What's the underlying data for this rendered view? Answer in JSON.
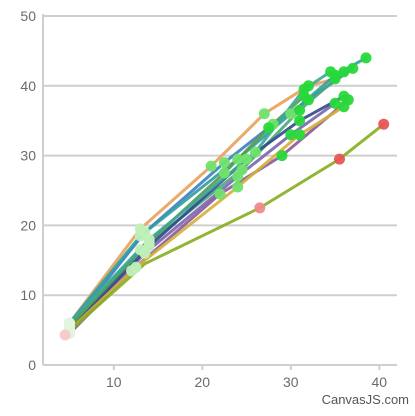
{
  "chart_data": {
    "type": "line",
    "title": "",
    "xlabel": "",
    "ylabel": "",
    "xlim": [
      2,
      42
    ],
    "ylim": [
      0,
      50
    ],
    "x_ticks": [
      "10",
      "20",
      "30",
      "40"
    ],
    "y_ticks": [
      "0",
      "10",
      "20",
      "30",
      "40",
      "50"
    ],
    "grid": true,
    "legend": "none",
    "series": [
      {
        "color": "#e8a15a",
        "points": [
          [
            5,
            6
          ],
          [
            13,
            19.5
          ],
          [
            21,
            28.5
          ],
          [
            27,
            36
          ],
          [
            32,
            40
          ],
          [
            35,
            41
          ]
        ]
      },
      {
        "color": "#3a7fbf",
        "points": [
          [
            5,
            5.5
          ],
          [
            13.5,
            19
          ],
          [
            22.5,
            29
          ],
          [
            28,
            34.5
          ],
          [
            32,
            38
          ],
          [
            37,
            42.5
          ]
        ]
      },
      {
        "color": "#2f9e9e",
        "points": [
          [
            5,
            6
          ],
          [
            13,
            18.5
          ],
          [
            24,
            29.5
          ],
          [
            30,
            36
          ],
          [
            35,
            41.5
          ],
          [
            38.5,
            44
          ]
        ]
      },
      {
        "color": "#4aa67a",
        "points": [
          [
            5,
            5.5
          ],
          [
            14,
            17.5
          ],
          [
            24.5,
            28
          ],
          [
            31,
            36.5
          ],
          [
            36,
            42
          ]
        ]
      },
      {
        "color": "#7a64b0",
        "points": [
          [
            4.8,
            4.5
          ],
          [
            13.5,
            16
          ],
          [
            24,
            27
          ],
          [
            30,
            33
          ],
          [
            35,
            37.5
          ]
        ]
      },
      {
        "color": "#2f4a8a",
        "points": [
          [
            5,
            5
          ],
          [
            14,
            17
          ],
          [
            25,
            29.5
          ],
          [
            31,
            35
          ],
          [
            36,
            38.5
          ]
        ]
      },
      {
        "color": "#8a5a9a",
        "points": [
          [
            5,
            4.5
          ],
          [
            12,
            13.5
          ],
          [
            22,
            24.5
          ],
          [
            29,
            30
          ],
          [
            36.5,
            38
          ]
        ]
      },
      {
        "color": "#d4b03a",
        "points": [
          [
            5,
            5
          ],
          [
            12.5,
            14
          ],
          [
            24,
            25.5
          ],
          [
            31,
            33
          ],
          [
            36,
            37
          ]
        ]
      },
      {
        "color": "#5a9a4a",
        "points": [
          [
            5,
            5.5
          ],
          [
            13,
            16.5
          ],
          [
            22.5,
            27.5
          ],
          [
            27.5,
            34
          ],
          [
            31.5,
            38.5
          ]
        ]
      },
      {
        "color": "#3aa89a",
        "points": [
          [
            5,
            6
          ],
          [
            14,
            18
          ],
          [
            26,
            30.5
          ],
          [
            31.5,
            39.5
          ],
          [
            34.5,
            42
          ]
        ]
      },
      {
        "color": "#86ad1e",
        "points": [
          [
            4.5,
            4.3
          ],
          [
            13.5,
            14.5
          ],
          [
            26.5,
            22.5
          ],
          [
            35.5,
            29.5
          ],
          [
            40.5,
            34.5
          ]
        ]
      }
    ],
    "marker_colors": {
      "early": "#dff5dc",
      "mid": "#6fe36a",
      "late": "#28d83a",
      "highlight_early": "#f6c9c9",
      "highlight_mid": "#f08a8a",
      "highlight_late": "#e85555"
    },
    "axis_color": "#cfcfcf",
    "grid_color": "#cfcfcf"
  },
  "credit": "CanvasJS.com"
}
